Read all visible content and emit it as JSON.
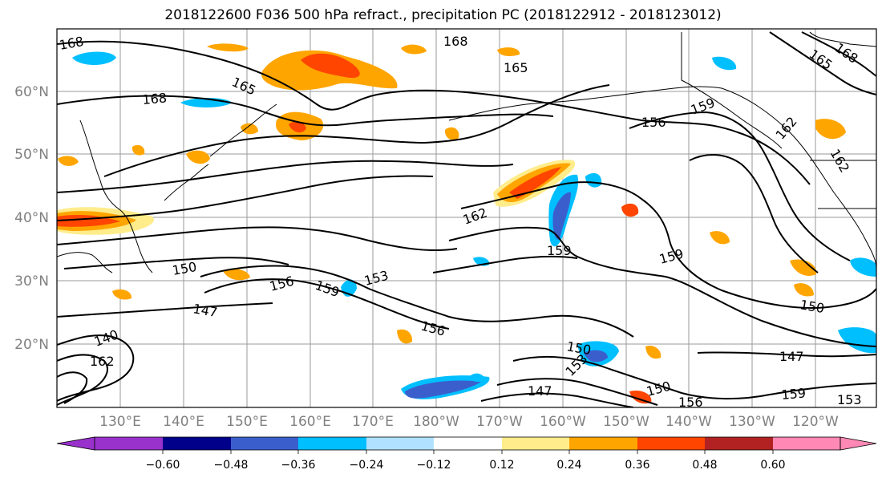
{
  "title": "2018122600 F036 500 hPa refract., precipitation PC (2018122912 - 2018123012)",
  "map": {
    "lat_labels": [
      "60°N",
      "50°N",
      "40°N",
      "30°N",
      "20°N"
    ],
    "lon_labels": [
      "130°E",
      "140°E",
      "150°E",
      "160°E",
      "170°E",
      "180°W",
      "170°W",
      "160°W",
      "150°W",
      "140°W",
      "130°W",
      "120°W"
    ],
    "contour_labels": [
      {
        "text": "168",
        "id": "c168-nw"
      },
      {
        "text": "168",
        "id": "c168-top"
      },
      {
        "text": "168",
        "id": "c168-w"
      },
      {
        "text": "165",
        "id": "c165-w"
      },
      {
        "text": "165",
        "id": "c165-top"
      },
      {
        "text": "162",
        "id": "c162-mid"
      },
      {
        "text": "159",
        "id": "c159-ak"
      },
      {
        "text": "156",
        "id": "c156-n"
      },
      {
        "text": "150",
        "id": "c150-w"
      },
      {
        "text": "147",
        "id": "c147-w"
      },
      {
        "text": "156",
        "id": "c156-w"
      },
      {
        "text": "159",
        "id": "c159-w"
      },
      {
        "text": "153",
        "id": "c153-w"
      },
      {
        "text": "156",
        "id": "c156-c"
      },
      {
        "text": "159",
        "id": "c159-c"
      },
      {
        "text": "159",
        "id": "c159-e"
      },
      {
        "text": "150",
        "id": "c150-s"
      },
      {
        "text": "153",
        "id": "c153-s"
      },
      {
        "text": "147",
        "id": "c147-s"
      },
      {
        "text": "150",
        "id": "c150-se"
      },
      {
        "text": "156",
        "id": "c156-se"
      },
      {
        "text": "147",
        "id": "c147-e"
      },
      {
        "text": "159",
        "id": "c159-se"
      },
      {
        "text": "153",
        "id": "c153-se"
      },
      {
        "text": "150",
        "id": "c150-e"
      },
      {
        "text": "162",
        "id": "c162-ne"
      },
      {
        "text": "162",
        "id": "c162-ne2"
      },
      {
        "text": "165",
        "id": "c165-ne"
      },
      {
        "text": "168",
        "id": "c168-ne"
      },
      {
        "text": "140",
        "id": "c140-sw"
      },
      {
        "text": "162",
        "id": "c162-sw"
      }
    ]
  },
  "colorbar": {
    "ticks": [
      "−0.60",
      "−0.48",
      "−0.36",
      "−0.24",
      "−0.12",
      "0.12",
      "0.24",
      "0.36",
      "0.48",
      "0.60"
    ],
    "colors": [
      "#9932cc",
      "#00008b",
      "#3a5fcd",
      "#00bfff",
      "#b0e2ff",
      "#ffffff",
      "#ffec8b",
      "#ffa500",
      "#ff4500",
      "#b22222",
      "#ff89b4",
      "#ff89b4"
    ]
  }
}
